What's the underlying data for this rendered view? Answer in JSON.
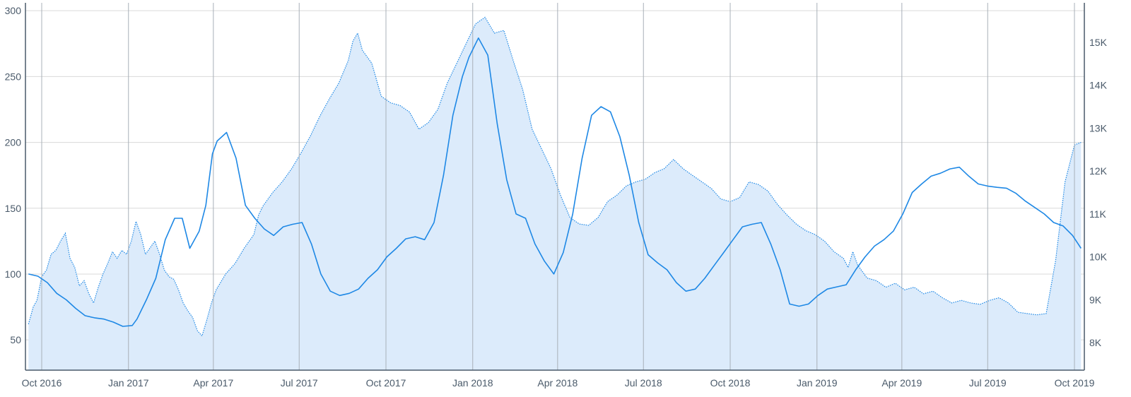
{
  "chart_data": {
    "type": "line",
    "title": "",
    "xlabel": "",
    "ylabel": "",
    "x_ticks": [
      "Oct 2016",
      "Jan 2017",
      "Apr 2017",
      "Jul 2017",
      "Oct 2017",
      "Jan 2018",
      "Apr 2018",
      "Jul 2018",
      "Oct 2018",
      "Jan 2019",
      "Apr 2019",
      "Jul 2019",
      "Oct 2019"
    ],
    "y_left_ticks": [
      "300",
      "250",
      "200",
      "150",
      "100",
      "50"
    ],
    "y_left_lim": [
      27,
      306
    ],
    "y_right_ticks": [
      "15K",
      "14K",
      "13K",
      "12K",
      "11K",
      "10K",
      "9K",
      "8K"
    ],
    "y_right_lim": [
      7360,
      15920
    ],
    "grid": true,
    "legend": "none",
    "colors": {
      "area_fill": "#dcebfb",
      "line": "#1e88e5",
      "grid": "#d9d9d9",
      "vgrid": "#a8b0b8",
      "axis": "#4a5a6a"
    },
    "series": [
      {
        "axis": "left",
        "style": "dotted-area",
        "points": [
          [
            "2016-09-17",
            62
          ],
          [
            "2016-09-22",
            75
          ],
          [
            "2016-09-26",
            80
          ],
          [
            "2016-10-01",
            98
          ],
          [
            "2016-10-06",
            103
          ],
          [
            "2016-10-11",
            115
          ],
          [
            "2016-10-16",
            118
          ],
          [
            "2016-10-21",
            125
          ],
          [
            "2016-10-26",
            131
          ],
          [
            "2016-10-31",
            112
          ],
          [
            "2016-11-05",
            105
          ],
          [
            "2016-11-10",
            91
          ],
          [
            "2016-11-15",
            95
          ],
          [
            "2016-11-20",
            85
          ],
          [
            "2016-11-25",
            78
          ],
          [
            "2016-11-30",
            90
          ],
          [
            "2016-12-05",
            100
          ],
          [
            "2016-12-10",
            108
          ],
          [
            "2016-12-15",
            117
          ],
          [
            "2016-12-20",
            112
          ],
          [
            "2016-12-25",
            118
          ],
          [
            "2016-12-30",
            115
          ],
          [
            "2017-01-04",
            125
          ],
          [
            "2017-01-09",
            140
          ],
          [
            "2017-01-14",
            130
          ],
          [
            "2017-01-19",
            115
          ],
          [
            "2017-01-24",
            120
          ],
          [
            "2017-01-29",
            125
          ],
          [
            "2017-02-03",
            115
          ],
          [
            "2017-02-08",
            103
          ],
          [
            "2017-02-13",
            98
          ],
          [
            "2017-02-18",
            96
          ],
          [
            "2017-02-23",
            88
          ],
          [
            "2017-02-28",
            78
          ],
          [
            "2017-03-05",
            72
          ],
          [
            "2017-03-10",
            67
          ],
          [
            "2017-03-15",
            57
          ],
          [
            "2017-03-20",
            53
          ],
          [
            "2017-03-25",
            65
          ],
          [
            "2017-03-30",
            78
          ],
          [
            "2017-04-04",
            88
          ],
          [
            "2017-04-14",
            100
          ],
          [
            "2017-04-24",
            108
          ],
          [
            "2017-05-04",
            120
          ],
          [
            "2017-05-14",
            130
          ],
          [
            "2017-05-19",
            145
          ],
          [
            "2017-05-24",
            152
          ],
          [
            "2017-06-03",
            162
          ],
          [
            "2017-06-13",
            170
          ],
          [
            "2017-06-23",
            180
          ],
          [
            "2017-07-03",
            192
          ],
          [
            "2017-07-13",
            205
          ],
          [
            "2017-07-23",
            220
          ],
          [
            "2017-08-02",
            233
          ],
          [
            "2017-08-12",
            245
          ],
          [
            "2017-08-22",
            262
          ],
          [
            "2017-08-27",
            277
          ],
          [
            "2017-09-01",
            283
          ],
          [
            "2017-09-06",
            270
          ],
          [
            "2017-09-16",
            260
          ],
          [
            "2017-09-26",
            235
          ],
          [
            "2017-10-06",
            230
          ],
          [
            "2017-10-16",
            228
          ],
          [
            "2017-10-26",
            223
          ],
          [
            "2017-11-05",
            210
          ],
          [
            "2017-11-15",
            215
          ],
          [
            "2017-11-25",
            225
          ],
          [
            "2017-12-05",
            245
          ],
          [
            "2017-12-15",
            260
          ],
          [
            "2017-12-25",
            275
          ],
          [
            "2018-01-04",
            290
          ],
          [
            "2018-01-14",
            295
          ],
          [
            "2018-01-24",
            283
          ],
          [
            "2018-02-03",
            285
          ],
          [
            "2018-02-13",
            262
          ],
          [
            "2018-02-23",
            240
          ],
          [
            "2018-03-05",
            210
          ],
          [
            "2018-03-15",
            195
          ],
          [
            "2018-03-25",
            180
          ],
          [
            "2018-04-04",
            160
          ],
          [
            "2018-04-14",
            143
          ],
          [
            "2018-04-24",
            138
          ],
          [
            "2018-05-04",
            137
          ],
          [
            "2018-05-14",
            143
          ],
          [
            "2018-05-24",
            155
          ],
          [
            "2018-06-03",
            160
          ],
          [
            "2018-06-13",
            167
          ],
          [
            "2018-06-23",
            170
          ],
          [
            "2018-07-03",
            172
          ],
          [
            "2018-07-13",
            177
          ],
          [
            "2018-07-23",
            180
          ],
          [
            "2018-08-02",
            187
          ],
          [
            "2018-08-12",
            180
          ],
          [
            "2018-08-22",
            175
          ],
          [
            "2018-09-01",
            170
          ],
          [
            "2018-09-11",
            165
          ],
          [
            "2018-09-21",
            157
          ],
          [
            "2018-10-01",
            155
          ],
          [
            "2018-10-11",
            158
          ],
          [
            "2018-10-21",
            170
          ],
          [
            "2018-10-31",
            168
          ],
          [
            "2018-11-10",
            163
          ],
          [
            "2018-11-20",
            153
          ],
          [
            "2018-11-30",
            145
          ],
          [
            "2018-12-10",
            138
          ],
          [
            "2018-12-20",
            133
          ],
          [
            "2018-12-30",
            130
          ],
          [
            "2019-01-09",
            125
          ],
          [
            "2019-01-19",
            117
          ],
          [
            "2019-01-29",
            112
          ],
          [
            "2019-02-03",
            105
          ],
          [
            "2019-02-08",
            117
          ],
          [
            "2019-02-13",
            107
          ],
          [
            "2019-02-23",
            97
          ],
          [
            "2019-03-05",
            95
          ],
          [
            "2019-03-15",
            90
          ],
          [
            "2019-03-25",
            93
          ],
          [
            "2019-04-04",
            88
          ],
          [
            "2019-04-14",
            90
          ],
          [
            "2019-04-24",
            85
          ],
          [
            "2019-05-04",
            87
          ],
          [
            "2019-05-14",
            82
          ],
          [
            "2019-05-24",
            78
          ],
          [
            "2019-06-03",
            80
          ],
          [
            "2019-06-13",
            78
          ],
          [
            "2019-06-23",
            77
          ],
          [
            "2019-07-03",
            80
          ],
          [
            "2019-07-13",
            82
          ],
          [
            "2019-07-23",
            78
          ],
          [
            "2019-08-02",
            71
          ],
          [
            "2019-08-12",
            70
          ],
          [
            "2019-08-22",
            69
          ],
          [
            "2019-09-01",
            70
          ],
          [
            "2019-09-11",
            110
          ],
          [
            "2019-09-21",
            170
          ],
          [
            "2019-10-01",
            198
          ],
          [
            "2019-10-08",
            200
          ]
        ]
      },
      {
        "axis": "right",
        "style": "solid-line",
        "points": [
          [
            "2016-09-17",
            9600
          ],
          [
            "2016-09-27",
            9550
          ],
          [
            "2016-10-07",
            9400
          ],
          [
            "2016-10-17",
            9150
          ],
          [
            "2016-10-27",
            9000
          ],
          [
            "2016-11-06",
            8800
          ],
          [
            "2016-11-16",
            8630
          ],
          [
            "2016-11-26",
            8580
          ],
          [
            "2016-12-06",
            8550
          ],
          [
            "2016-12-16",
            8480
          ],
          [
            "2016-12-26",
            8380
          ],
          [
            "2017-01-05",
            8400
          ],
          [
            "2017-01-10",
            8550
          ],
          [
            "2017-01-20",
            9000
          ],
          [
            "2017-01-30",
            9500
          ],
          [
            "2017-02-09",
            10400
          ],
          [
            "2017-02-19",
            10900
          ],
          [
            "2017-02-27",
            10900
          ],
          [
            "2017-03-07",
            10200
          ],
          [
            "2017-03-17",
            10600
          ],
          [
            "2017-03-24",
            11200
          ],
          [
            "2017-03-31",
            12400
          ],
          [
            "2017-04-05",
            12700
          ],
          [
            "2017-04-15",
            12900
          ],
          [
            "2017-04-25",
            12300
          ],
          [
            "2017-05-05",
            11200
          ],
          [
            "2017-05-15",
            10900
          ],
          [
            "2017-05-25",
            10650
          ],
          [
            "2017-06-04",
            10500
          ],
          [
            "2017-06-14",
            10700
          ],
          [
            "2017-06-24",
            10760
          ],
          [
            "2017-07-04",
            10800
          ],
          [
            "2017-07-14",
            10300
          ],
          [
            "2017-07-24",
            9600
          ],
          [
            "2017-08-03",
            9200
          ],
          [
            "2017-08-13",
            9100
          ],
          [
            "2017-08-23",
            9150
          ],
          [
            "2017-09-02",
            9250
          ],
          [
            "2017-09-12",
            9500
          ],
          [
            "2017-09-22",
            9700
          ],
          [
            "2017-10-02",
            10000
          ],
          [
            "2017-10-12",
            10200
          ],
          [
            "2017-10-22",
            10420
          ],
          [
            "2017-11-01",
            10470
          ],
          [
            "2017-11-11",
            10400
          ],
          [
            "2017-11-21",
            10800
          ],
          [
            "2017-12-01",
            11900
          ],
          [
            "2017-12-11",
            13300
          ],
          [
            "2017-12-21",
            14200
          ],
          [
            "2017-12-28",
            14650
          ],
          [
            "2018-01-07",
            15100
          ],
          [
            "2018-01-17",
            14700
          ],
          [
            "2018-01-27",
            13100
          ],
          [
            "2018-02-06",
            11800
          ],
          [
            "2018-02-16",
            11000
          ],
          [
            "2018-02-26",
            10900
          ],
          [
            "2018-03-08",
            10300
          ],
          [
            "2018-03-18",
            9900
          ],
          [
            "2018-03-28",
            9600
          ],
          [
            "2018-04-07",
            10100
          ],
          [
            "2018-04-17",
            11000
          ],
          [
            "2018-04-27",
            12300
          ],
          [
            "2018-05-07",
            13300
          ],
          [
            "2018-05-17",
            13500
          ],
          [
            "2018-05-27",
            13380
          ],
          [
            "2018-06-06",
            12800
          ],
          [
            "2018-06-16",
            11900
          ],
          [
            "2018-06-26",
            10800
          ],
          [
            "2018-07-06",
            10050
          ],
          [
            "2018-07-16",
            9860
          ],
          [
            "2018-07-26",
            9700
          ],
          [
            "2018-08-05",
            9400
          ],
          [
            "2018-08-15",
            9200
          ],
          [
            "2018-08-25",
            9250
          ],
          [
            "2018-09-04",
            9500
          ],
          [
            "2018-09-14",
            9800
          ],
          [
            "2018-09-24",
            10100
          ],
          [
            "2018-10-04",
            10400
          ],
          [
            "2018-10-14",
            10700
          ],
          [
            "2018-10-24",
            10760
          ],
          [
            "2018-11-03",
            10800
          ],
          [
            "2018-11-13",
            10300
          ],
          [
            "2018-11-23",
            9700
          ],
          [
            "2018-12-03",
            8900
          ],
          [
            "2018-12-13",
            8850
          ],
          [
            "2018-12-23",
            8900
          ],
          [
            "2019-01-02",
            9100
          ],
          [
            "2019-01-12",
            9250
          ],
          [
            "2019-01-22",
            9300
          ],
          [
            "2019-02-01",
            9350
          ],
          [
            "2019-02-11",
            9700
          ],
          [
            "2019-02-21",
            10000
          ],
          [
            "2019-03-03",
            10250
          ],
          [
            "2019-03-13",
            10400
          ],
          [
            "2019-03-23",
            10600
          ],
          [
            "2019-04-02",
            11000
          ],
          [
            "2019-04-12",
            11500
          ],
          [
            "2019-04-22",
            11700
          ],
          [
            "2019-05-02",
            11880
          ],
          [
            "2019-05-12",
            11950
          ],
          [
            "2019-05-22",
            12050
          ],
          [
            "2019-06-01",
            12090
          ],
          [
            "2019-06-11",
            11880
          ],
          [
            "2019-06-21",
            11700
          ],
          [
            "2019-07-01",
            11650
          ],
          [
            "2019-07-11",
            11620
          ],
          [
            "2019-07-21",
            11600
          ],
          [
            "2019-07-31",
            11480
          ],
          [
            "2019-08-10",
            11300
          ],
          [
            "2019-08-20",
            11150
          ],
          [
            "2019-08-30",
            11000
          ],
          [
            "2019-09-09",
            10800
          ],
          [
            "2019-09-19",
            10720
          ],
          [
            "2019-09-29",
            10500
          ],
          [
            "2019-10-08",
            10200
          ]
        ]
      }
    ]
  }
}
